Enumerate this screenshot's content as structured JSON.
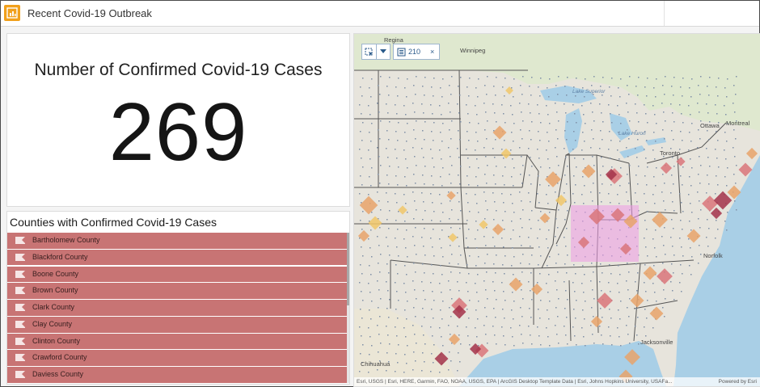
{
  "app": {
    "title": "Recent Covid-19 Outbreak",
    "icon": "dashboard-app-icon"
  },
  "indicator": {
    "title": "Number of Confirmed Covid-19 Cases",
    "value": "269"
  },
  "county_list": {
    "title": "Counties with Confirmed Covid-19 Cases",
    "item_icon": "flag-icon",
    "item_color": "#c87474",
    "items": [
      "Bartholomew County",
      "Blackford County",
      "Boone County",
      "Brown County",
      "Clark County",
      "Clay County",
      "Clinton County",
      "Crawford County",
      "Daviess County"
    ]
  },
  "map": {
    "select_tool_icon": "select-icon",
    "dropdown_icon": "chevron-down-icon",
    "selection_icon": "selection-icon",
    "selection_count": "210",
    "clear_icon": "close-icon",
    "clear_label": "×",
    "places": {
      "regina": "Regina",
      "winnipeg": "Winnipeg",
      "lake_superior": "Lake Superior",
      "lake_huron": "Lake Huron",
      "ottawa": "Ottawa",
      "montreal": "Montreal",
      "toronto": "Toronto",
      "chihuahua": "Chihuahua",
      "jacksonville": "Jacksonville",
      "norfolk": "Norfolk"
    },
    "attribution": "Esri, USGS | Esri, HERE, Garmin, FAO, NOAA, USGS, EPA | ArcGIS Desktop Template Data | Esri, Johns Hopkins University, USAFa...",
    "powered_by": "Powered by Esri",
    "colors": {
      "land": "#e7e4dc",
      "water": "#a9cfe6",
      "canada": "#dfe8cf",
      "low": "#f0c76a",
      "medium": "#e8a36a",
      "high": "#d9757a",
      "highest": "#a3324a",
      "selection": "#ee9be6"
    }
  }
}
